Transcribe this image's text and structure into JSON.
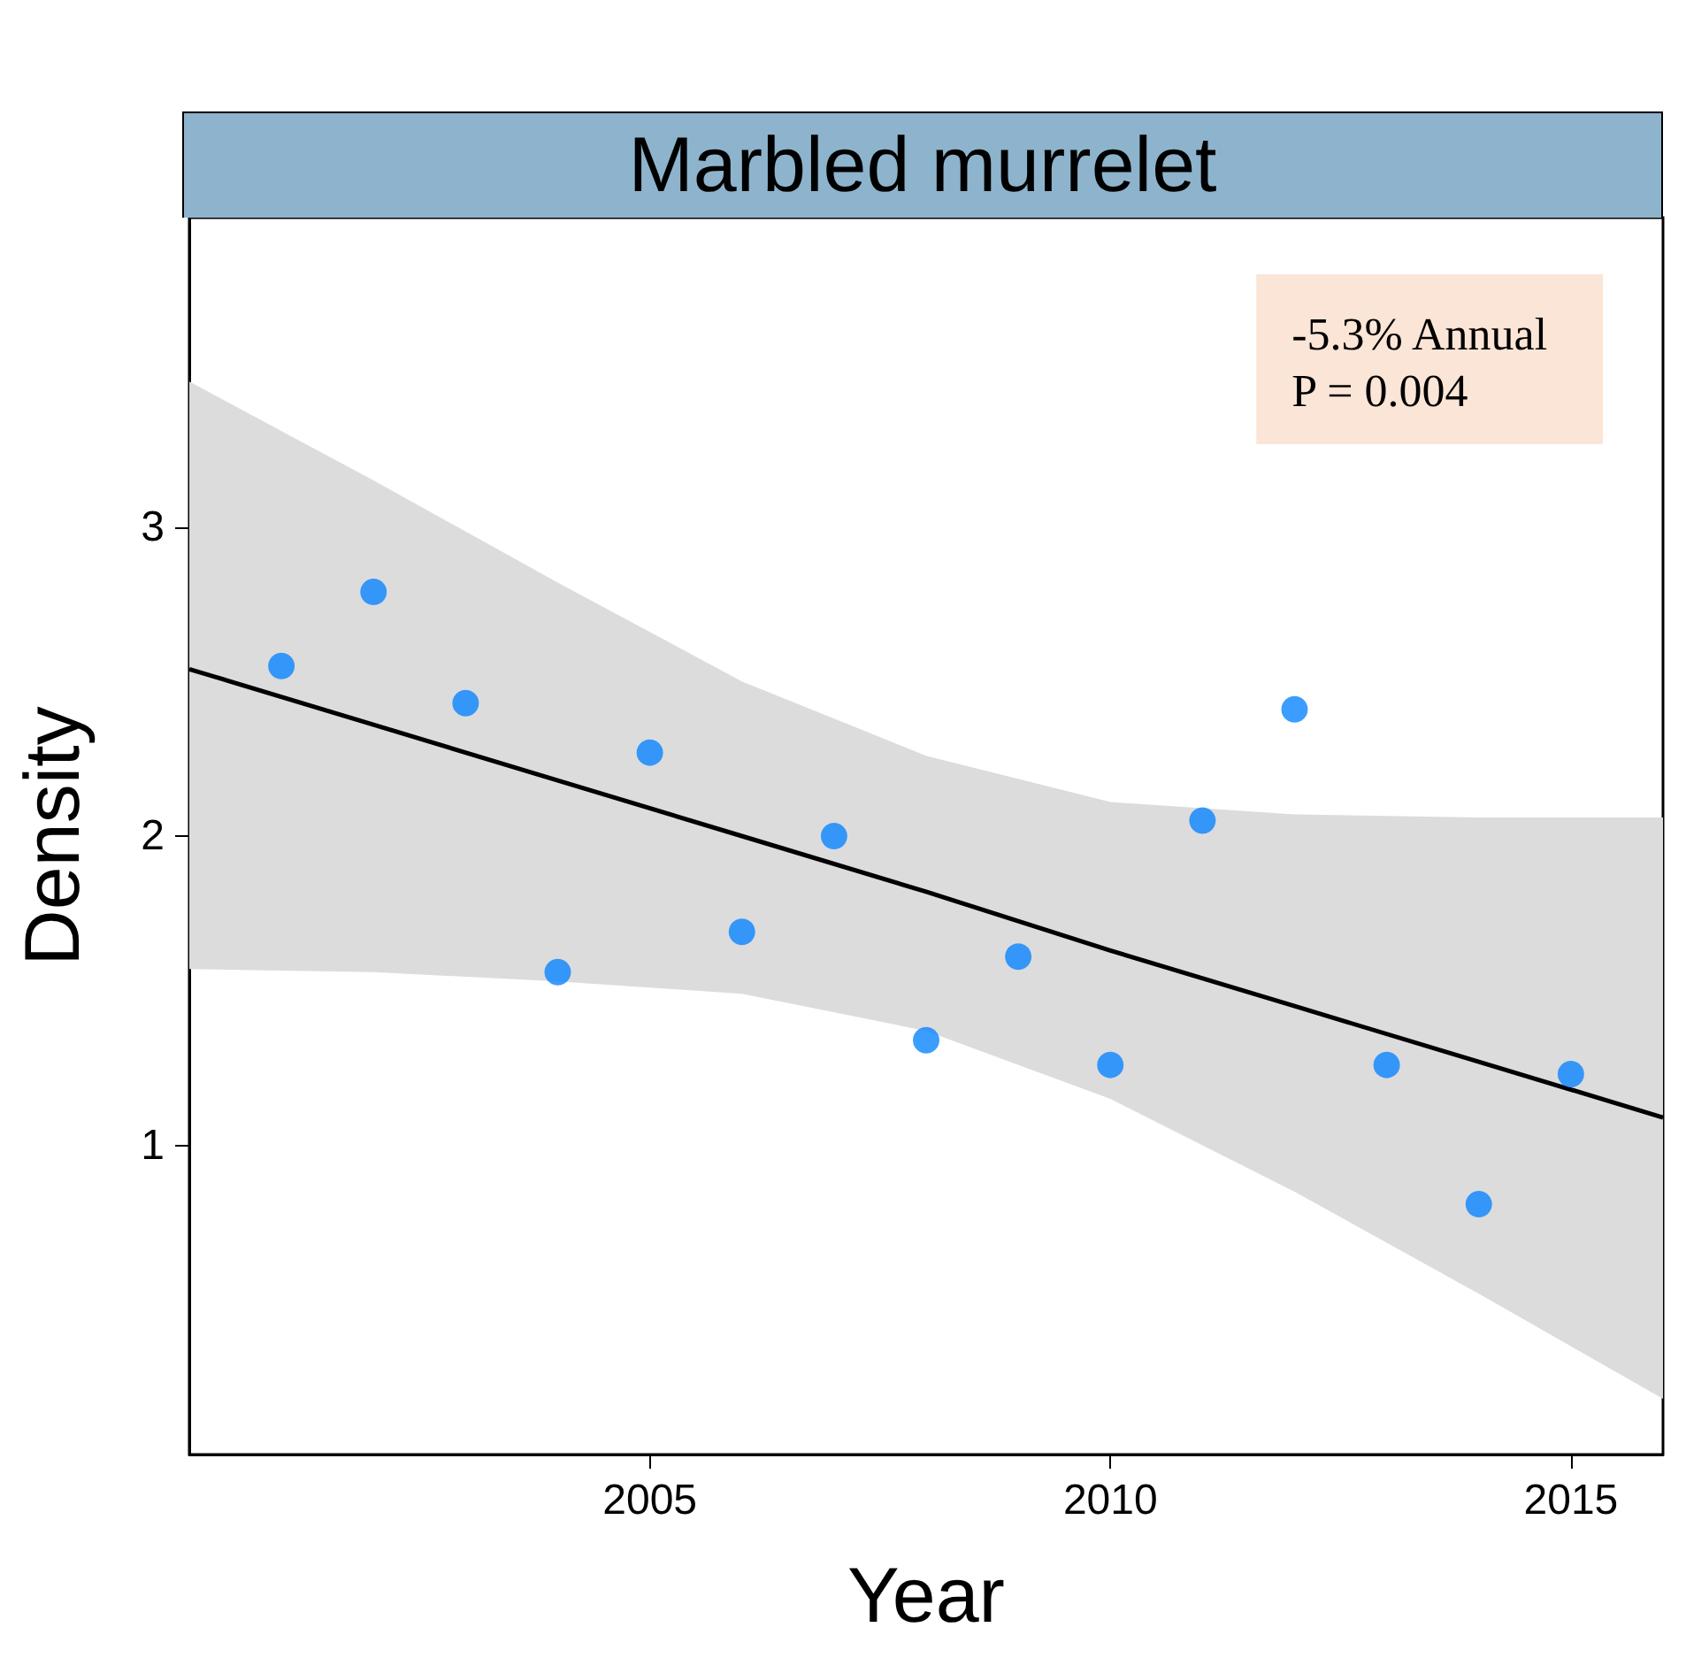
{
  "chart_data": {
    "type": "scatter",
    "title": "Marbled murrelet",
    "xlabel": "Year",
    "ylabel": "Density",
    "annotations": [
      "-5.3% Annual\nP = 0.004"
    ],
    "x": [
      2001,
      2002,
      2003,
      2004,
      2005,
      2006,
      2007,
      2008,
      2009,
      2010,
      2011,
      2012,
      2013,
      2014,
      2015
    ],
    "series": [
      {
        "color": "#0a84ff",
        "marker": "circle",
        "values": [
          2.55,
          2.79,
          2.43,
          1.56,
          2.27,
          1.69,
          2.0,
          1.34,
          1.61,
          1.26,
          2.05,
          2.41,
          1.26,
          0.81,
          1.23
        ]
      },
      {
        "type": "line",
        "marker": "none",
        "color": "#000000",
        "x": [
          2000,
          2002,
          2004,
          2006,
          2008,
          2010,
          2012,
          2014,
          2016
        ],
        "values": [
          2.54,
          2.36,
          2.18,
          2.0,
          1.82,
          1.63,
          1.45,
          1.27,
          1.09
        ],
        "lower": [
          1.57,
          1.56,
          1.53,
          1.49,
          1.37,
          1.15,
          0.85,
          0.52,
          0.18
        ],
        "upper": [
          3.47,
          3.15,
          2.82,
          2.5,
          2.26,
          2.11,
          2.07,
          2.06,
          2.06
        ]
      }
    ],
    "xlim": [
      2000,
      2016
    ],
    "xticks": [
      2005,
      2010,
      2015
    ],
    "ylim": [
      0,
      4
    ],
    "yticks": [
      1,
      2,
      3
    ],
    "grid": false
  }
}
